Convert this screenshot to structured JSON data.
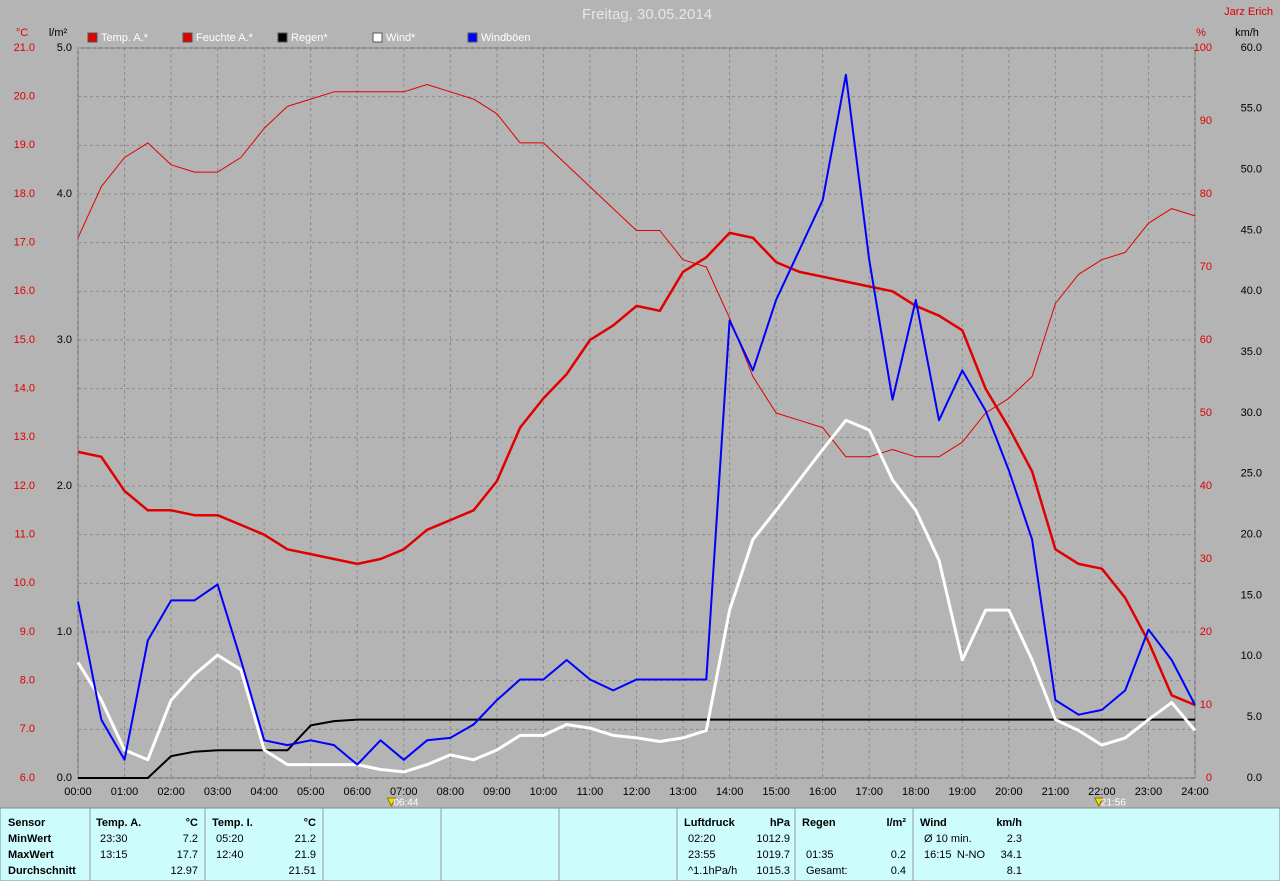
{
  "chart_data": {
    "type": "line",
    "title": "Freitag, 30.05.2014",
    "author": "Jarz Erich",
    "x": [
      0,
      0.5,
      1,
      1.5,
      2,
      2.5,
      3,
      3.5,
      4,
      4.5,
      5,
      5.5,
      6,
      6.5,
      7,
      7.5,
      8,
      8.5,
      9,
      9.5,
      10,
      10.5,
      11,
      11.5,
      12,
      12.5,
      13,
      13.5,
      14,
      14.5,
      15,
      15.5,
      16,
      16.5,
      17,
      17.5,
      18,
      18.5,
      19,
      19.5,
      20,
      20.5,
      21,
      21.5,
      22,
      22.5,
      23,
      23.5,
      24
    ],
    "xlim": [
      0,
      24
    ],
    "xticks": [
      {
        "value": 0,
        "label": "00:00"
      },
      {
        "value": 1,
        "label": "01:00"
      },
      {
        "value": 2,
        "label": "02:00"
      },
      {
        "value": 3,
        "label": "03:00"
      },
      {
        "value": 4,
        "label": "04:00"
      },
      {
        "value": 5,
        "label": "05:00"
      },
      {
        "value": 6,
        "label": "06:00"
      },
      {
        "value": 7,
        "label": "07:00"
      },
      {
        "value": 8,
        "label": "08:00"
      },
      {
        "value": 9,
        "label": "09:00"
      },
      {
        "value": 10,
        "label": "10:00"
      },
      {
        "value": 11,
        "label": "11:00"
      },
      {
        "value": 12,
        "label": "12:00"
      },
      {
        "value": 13,
        "label": "13:00"
      },
      {
        "value": 14,
        "label": "14:00"
      },
      {
        "value": 15,
        "label": "15:00"
      },
      {
        "value": 16,
        "label": "16:00"
      },
      {
        "value": 17,
        "label": "17:00"
      },
      {
        "value": 18,
        "label": "18:00"
      },
      {
        "value": 19,
        "label": "19:00"
      },
      {
        "value": 20,
        "label": "20:00"
      },
      {
        "value": 21,
        "label": "21:00"
      },
      {
        "value": 22,
        "label": "22:00"
      },
      {
        "value": 23,
        "label": "23:00"
      },
      {
        "value": 24,
        "label": "24:00"
      }
    ],
    "ylabel": "°C",
    "ylim": [
      6,
      21
    ],
    "yticks": [
      {
        "value": 6,
        "label": "6.0"
      },
      {
        "value": 7,
        "label": "7.0"
      },
      {
        "value": 8,
        "label": "8.0"
      },
      {
        "value": 9,
        "label": "9.0"
      },
      {
        "value": 10,
        "label": "10.0"
      },
      {
        "value": 11,
        "label": "11.0"
      },
      {
        "value": 12,
        "label": "12.0"
      },
      {
        "value": 13,
        "label": "13.0"
      },
      {
        "value": 14,
        "label": "14.0"
      },
      {
        "value": 15,
        "label": "15.0"
      },
      {
        "value": 16,
        "label": "16.0"
      },
      {
        "value": 17,
        "label": "17.0"
      },
      {
        "value": 18,
        "label": "18.0"
      },
      {
        "value": 19,
        "label": "19.0"
      },
      {
        "value": 20,
        "label": "20.0"
      },
      {
        "value": 21,
        "label": "21.0"
      }
    ],
    "y2label": "%",
    "y2lim": [
      0,
      100
    ],
    "y2ticks": [
      0,
      10,
      20,
      30,
      40,
      50,
      60,
      70,
      80,
      90,
      100
    ],
    "y3label": "l/m²",
    "y3lim": [
      0,
      5
    ],
    "y3ticks": [
      {
        "value": 0,
        "label": "0.0"
      },
      {
        "value": 1,
        "label": "1.0"
      },
      {
        "value": 2,
        "label": "2.0"
      },
      {
        "value": 3,
        "label": "3.0"
      },
      {
        "value": 4,
        "label": "4.0"
      },
      {
        "value": 5,
        "label": "5.0"
      }
    ],
    "y4label": "km/h",
    "y4lim": [
      0,
      60
    ],
    "y4ticks": [
      {
        "value": 0,
        "label": "0.0"
      },
      {
        "value": 5,
        "label": "5.0"
      },
      {
        "value": 10,
        "label": "10.0"
      },
      {
        "value": 15,
        "label": "15.0"
      },
      {
        "value": 20,
        "label": "20.0"
      },
      {
        "value": 25,
        "label": "25.0"
      },
      {
        "value": 30,
        "label": "30.0"
      },
      {
        "value": 35,
        "label": "35.0"
      },
      {
        "value": 40,
        "label": "40.0"
      },
      {
        "value": 45,
        "label": "45.0"
      },
      {
        "value": 50,
        "label": "50.0"
      },
      {
        "value": 55,
        "label": "55.0"
      },
      {
        "value": 60,
        "label": "60.0"
      }
    ],
    "grid": true,
    "series": [
      {
        "name": "Temp. A.*",
        "color": "#e00000",
        "width": 2.5,
        "axis": "y",
        "values": [
          12.7,
          12.6,
          11.9,
          11.5,
          11.5,
          11.4,
          11.4,
          11.2,
          11.0,
          10.7,
          10.6,
          10.5,
          10.4,
          10.5,
          10.7,
          11.1,
          11.3,
          11.5,
          12.1,
          13.2,
          13.8,
          14.3,
          15.0,
          15.3,
          15.7,
          15.6,
          16.4,
          16.7,
          17.2,
          17.1,
          16.6,
          16.4,
          16.3,
          16.2,
          16.1,
          16.0,
          15.7,
          15.5,
          15.2,
          14.0,
          13.2,
          12.3,
          10.7,
          10.4,
          10.3,
          9.7,
          8.8,
          7.7,
          7.5
        ]
      },
      {
        "name": "Feuchte A.*",
        "color": "#e00000",
        "width": 1,
        "axis": "y2",
        "values": [
          74,
          81,
          85,
          87,
          84,
          83,
          83,
          85,
          89,
          92,
          93,
          94,
          94,
          94,
          94,
          95,
          94,
          93,
          91,
          87,
          87,
          84,
          81,
          78,
          75,
          75,
          71,
          70,
          63,
          55,
          50,
          49,
          48,
          44,
          44,
          45,
          44,
          44,
          46,
          50,
          52,
          55,
          65,
          69,
          71,
          72,
          76,
          78,
          77
        ]
      },
      {
        "name": "Regen*",
        "color": "#000000",
        "width": 2,
        "axis": "y3",
        "values": [
          0,
          0,
          0,
          0,
          0.15,
          0.18,
          0.19,
          0.19,
          0.19,
          0.19,
          0.36,
          0.39,
          0.4,
          0.4,
          0.4,
          0.4,
          0.4,
          0.4,
          0.4,
          0.4,
          0.4,
          0.4,
          0.4,
          0.4,
          0.4,
          0.4,
          0.4,
          0.4,
          0.4,
          0.4,
          0.4,
          0.4,
          0.4,
          0.4,
          0.4,
          0.4,
          0.4,
          0.4,
          0.4,
          0.4,
          0.4,
          0.4,
          0.4,
          0.4,
          0.4,
          0.4,
          0.4,
          0.4,
          0.4
        ]
      },
      {
        "name": "Wind*",
        "color": "#ffffff",
        "width": 3,
        "axis": "y4",
        "values": [
          9.5,
          6.4,
          2.3,
          1.5,
          6.4,
          8.5,
          10.1,
          8.9,
          2.3,
          1.1,
          1.1,
          1.1,
          1.1,
          0.7,
          0.5,
          1.1,
          1.9,
          1.5,
          2.3,
          3.5,
          3.5,
          4.4,
          4.1,
          3.5,
          3.3,
          3.0,
          3.3,
          3.9,
          13.8,
          19.6,
          22.0,
          24.5,
          27.0,
          29.4,
          28.6,
          24.5,
          22.0,
          17.9,
          9.7,
          13.8,
          13.8,
          9.7,
          4.8,
          3.9,
          2.7,
          3.3,
          4.8,
          6.2,
          3.9
        ]
      },
      {
        "name": "Windböen",
        "color": "#0000ff",
        "width": 2,
        "axis": "y4",
        "values": [
          14.5,
          4.8,
          1.5,
          11.3,
          14.6,
          14.6,
          15.9,
          9.7,
          3.1,
          2.7,
          3.1,
          2.7,
          1.1,
          3.1,
          1.5,
          3.1,
          3.3,
          4.4,
          6.4,
          8.1,
          8.1,
          9.7,
          8.1,
          7.2,
          8.1,
          8.1,
          8.1,
          8.1,
          37.6,
          33.5,
          39.3,
          43.4,
          47.5,
          57.8,
          42.6,
          31.1,
          39.3,
          29.4,
          33.5,
          30.2,
          25.3,
          19.6,
          6.4,
          5.2,
          5.6,
          7.2,
          12.2,
          9.7,
          6.0
        ]
      }
    ],
    "annotations": [
      {
        "value": 6.733,
        "label": "06:44"
      },
      {
        "value": 21.933,
        "label": "21:56"
      }
    ]
  },
  "stats_table": {
    "sections": [
      {
        "header": [
          "Sensor"
        ],
        "rows": [
          [
            "MinWert"
          ],
          [
            "MaxWert"
          ],
          [
            "Durchschnitt"
          ]
        ]
      },
      {
        "header": [
          "Temp. A.",
          "°C"
        ],
        "rows": [
          [
            "23:30",
            "7.2"
          ],
          [
            "13:15",
            "17.7"
          ],
          [
            null,
            "12.97"
          ]
        ]
      },
      {
        "header": [
          "Temp. I.",
          "°C"
        ],
        "rows": [
          [
            "05:20",
            "21.2"
          ],
          [
            "12:40",
            "21.9"
          ],
          [
            null,
            "21.51"
          ]
        ]
      },
      {
        "header": [
          "Luftdruck",
          "hPa"
        ],
        "rows": [
          [
            "02:20",
            "1012.9"
          ],
          [
            "23:55",
            "1019.7"
          ],
          [
            "^1.1hPa/h",
            "1015.3"
          ]
        ]
      },
      {
        "header": [
          "Regen",
          "l/m²"
        ],
        "rows": [
          [
            null,
            null
          ],
          [
            "01:35",
            "0.2"
          ],
          [
            "Gesamt:",
            "0.4"
          ]
        ]
      },
      {
        "header": [
          "Wind",
          null,
          "km/h"
        ],
        "rows": [
          [
            "Ø 10 min.",
            null,
            "2.3"
          ],
          [
            "16:15",
            "N-NO",
            "34.1"
          ],
          [
            null,
            null,
            "8.1"
          ]
        ]
      }
    ]
  }
}
